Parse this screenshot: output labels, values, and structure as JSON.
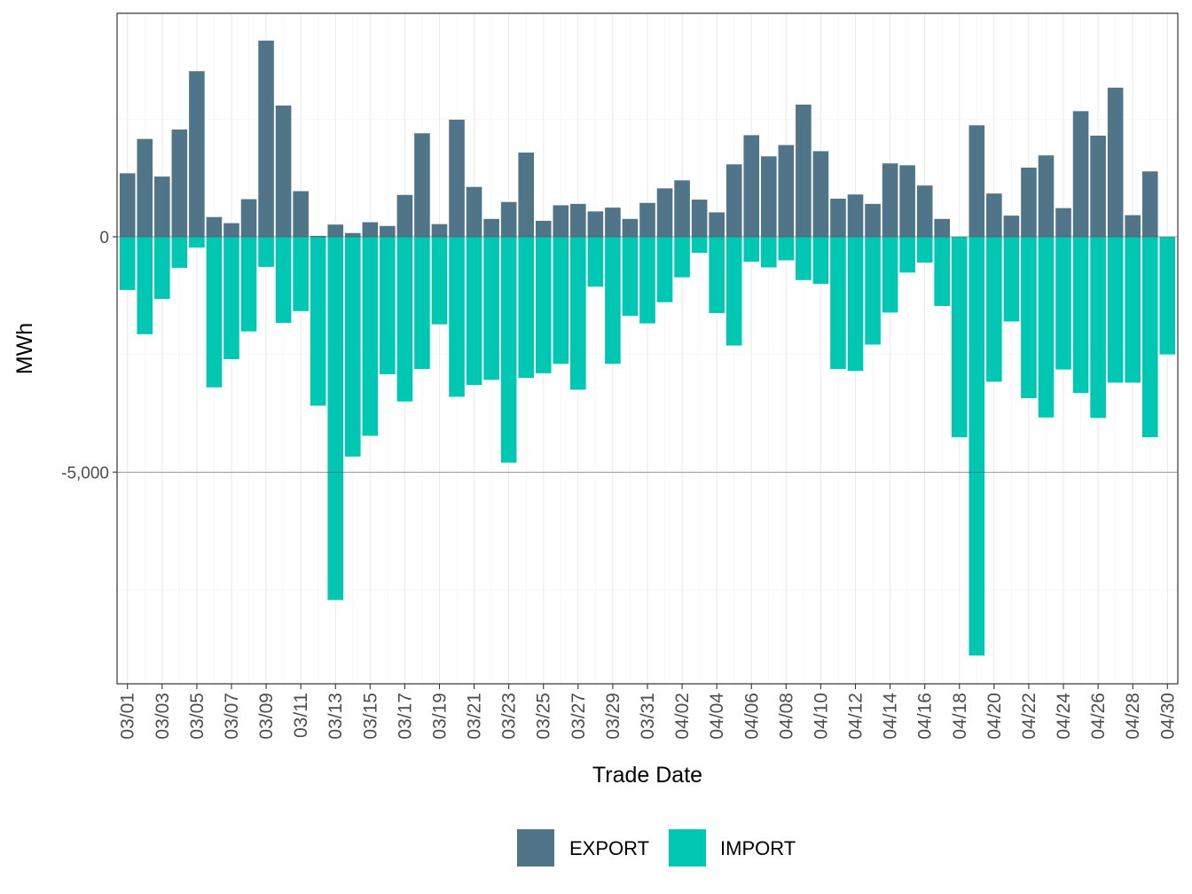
{
  "chart_data": {
    "type": "bar",
    "stacked": "diverging",
    "title": "",
    "xlabel": "Trade Date",
    "ylabel": "MWh",
    "ylim": [
      -9500,
      4750
    ],
    "yticks": [
      0,
      -5000
    ],
    "ytick_labels": [
      "0",
      "-5,000"
    ],
    "grid": true,
    "legend_position": "bottom",
    "colors": {
      "EXPORT": "#507488",
      "IMPORT": "#00c7b1"
    },
    "categories": [
      "03/01",
      "03/02",
      "03/03",
      "03/04",
      "03/05",
      "03/06",
      "03/07",
      "03/08",
      "03/09",
      "03/10",
      "03/11",
      "03/12",
      "03/13",
      "03/14",
      "03/15",
      "03/16",
      "03/17",
      "03/18",
      "03/19",
      "03/20",
      "03/21",
      "03/22",
      "03/23",
      "03/24",
      "03/25",
      "03/26",
      "03/27",
      "03/28",
      "03/29",
      "03/30",
      "03/31",
      "04/01",
      "04/02",
      "04/03",
      "04/04",
      "04/05",
      "04/06",
      "04/07",
      "04/08",
      "04/09",
      "04/10",
      "04/11",
      "04/12",
      "04/13",
      "04/14",
      "04/15",
      "04/16",
      "04/17",
      "04/18",
      "04/19",
      "04/20",
      "04/21",
      "04/22",
      "04/23",
      "04/24",
      "04/25",
      "04/26",
      "04/27",
      "04/28",
      "04/29",
      "04/30"
    ],
    "tick_labels": [
      "03/01",
      "03/03",
      "03/05",
      "03/07",
      "03/09",
      "03/11",
      "03/13",
      "03/15",
      "03/17",
      "03/19",
      "03/21",
      "03/23",
      "03/25",
      "03/27",
      "03/29",
      "03/31",
      "04/02",
      "04/04",
      "04/06",
      "04/08",
      "04/10",
      "04/12",
      "04/14",
      "04/16",
      "04/18",
      "04/20",
      "04/22",
      "04/24",
      "04/26",
      "04/28",
      "04/30"
    ],
    "series": [
      {
        "name": "EXPORT",
        "values": [
          1350,
          2080,
          1280,
          2280,
          3520,
          420,
          290,
          800,
          4170,
          2790,
          970,
          20,
          260,
          80,
          310,
          230,
          890,
          2200,
          270,
          2490,
          1060,
          380,
          740,
          1790,
          340,
          670,
          700,
          540,
          620,
          380,
          720,
          1030,
          1200,
          790,
          520,
          1540,
          2160,
          1710,
          1950,
          2810,
          1820,
          810,
          900,
          700,
          1560,
          1520,
          1090,
          380,
          0,
          2370,
          920,
          450,
          1470,
          1730,
          610,
          2670,
          2150,
          3170,
          460,
          1390,
          0
        ]
      },
      {
        "name": "IMPORT",
        "values": [
          -1130,
          -2070,
          -1320,
          -660,
          -230,
          -3200,
          -2600,
          -2010,
          -640,
          -1830,
          -1580,
          -3590,
          -7720,
          -4670,
          -4230,
          -2920,
          -3500,
          -2810,
          -1860,
          -3400,
          -3150,
          -3040,
          -4800,
          -3000,
          -2900,
          -2700,
          -3250,
          -1060,
          -2700,
          -1680,
          -1840,
          -1390,
          -860,
          -340,
          -1620,
          -2310,
          -530,
          -650,
          -500,
          -920,
          -1000,
          -2810,
          -2850,
          -2290,
          -1610,
          -760,
          -550,
          -1470,
          -4260,
          -8900,
          -3080,
          -1800,
          -3430,
          -3840,
          -2820,
          -3320,
          -3850,
          -3100,
          -3100,
          -4260,
          -2500
        ]
      }
    ]
  }
}
